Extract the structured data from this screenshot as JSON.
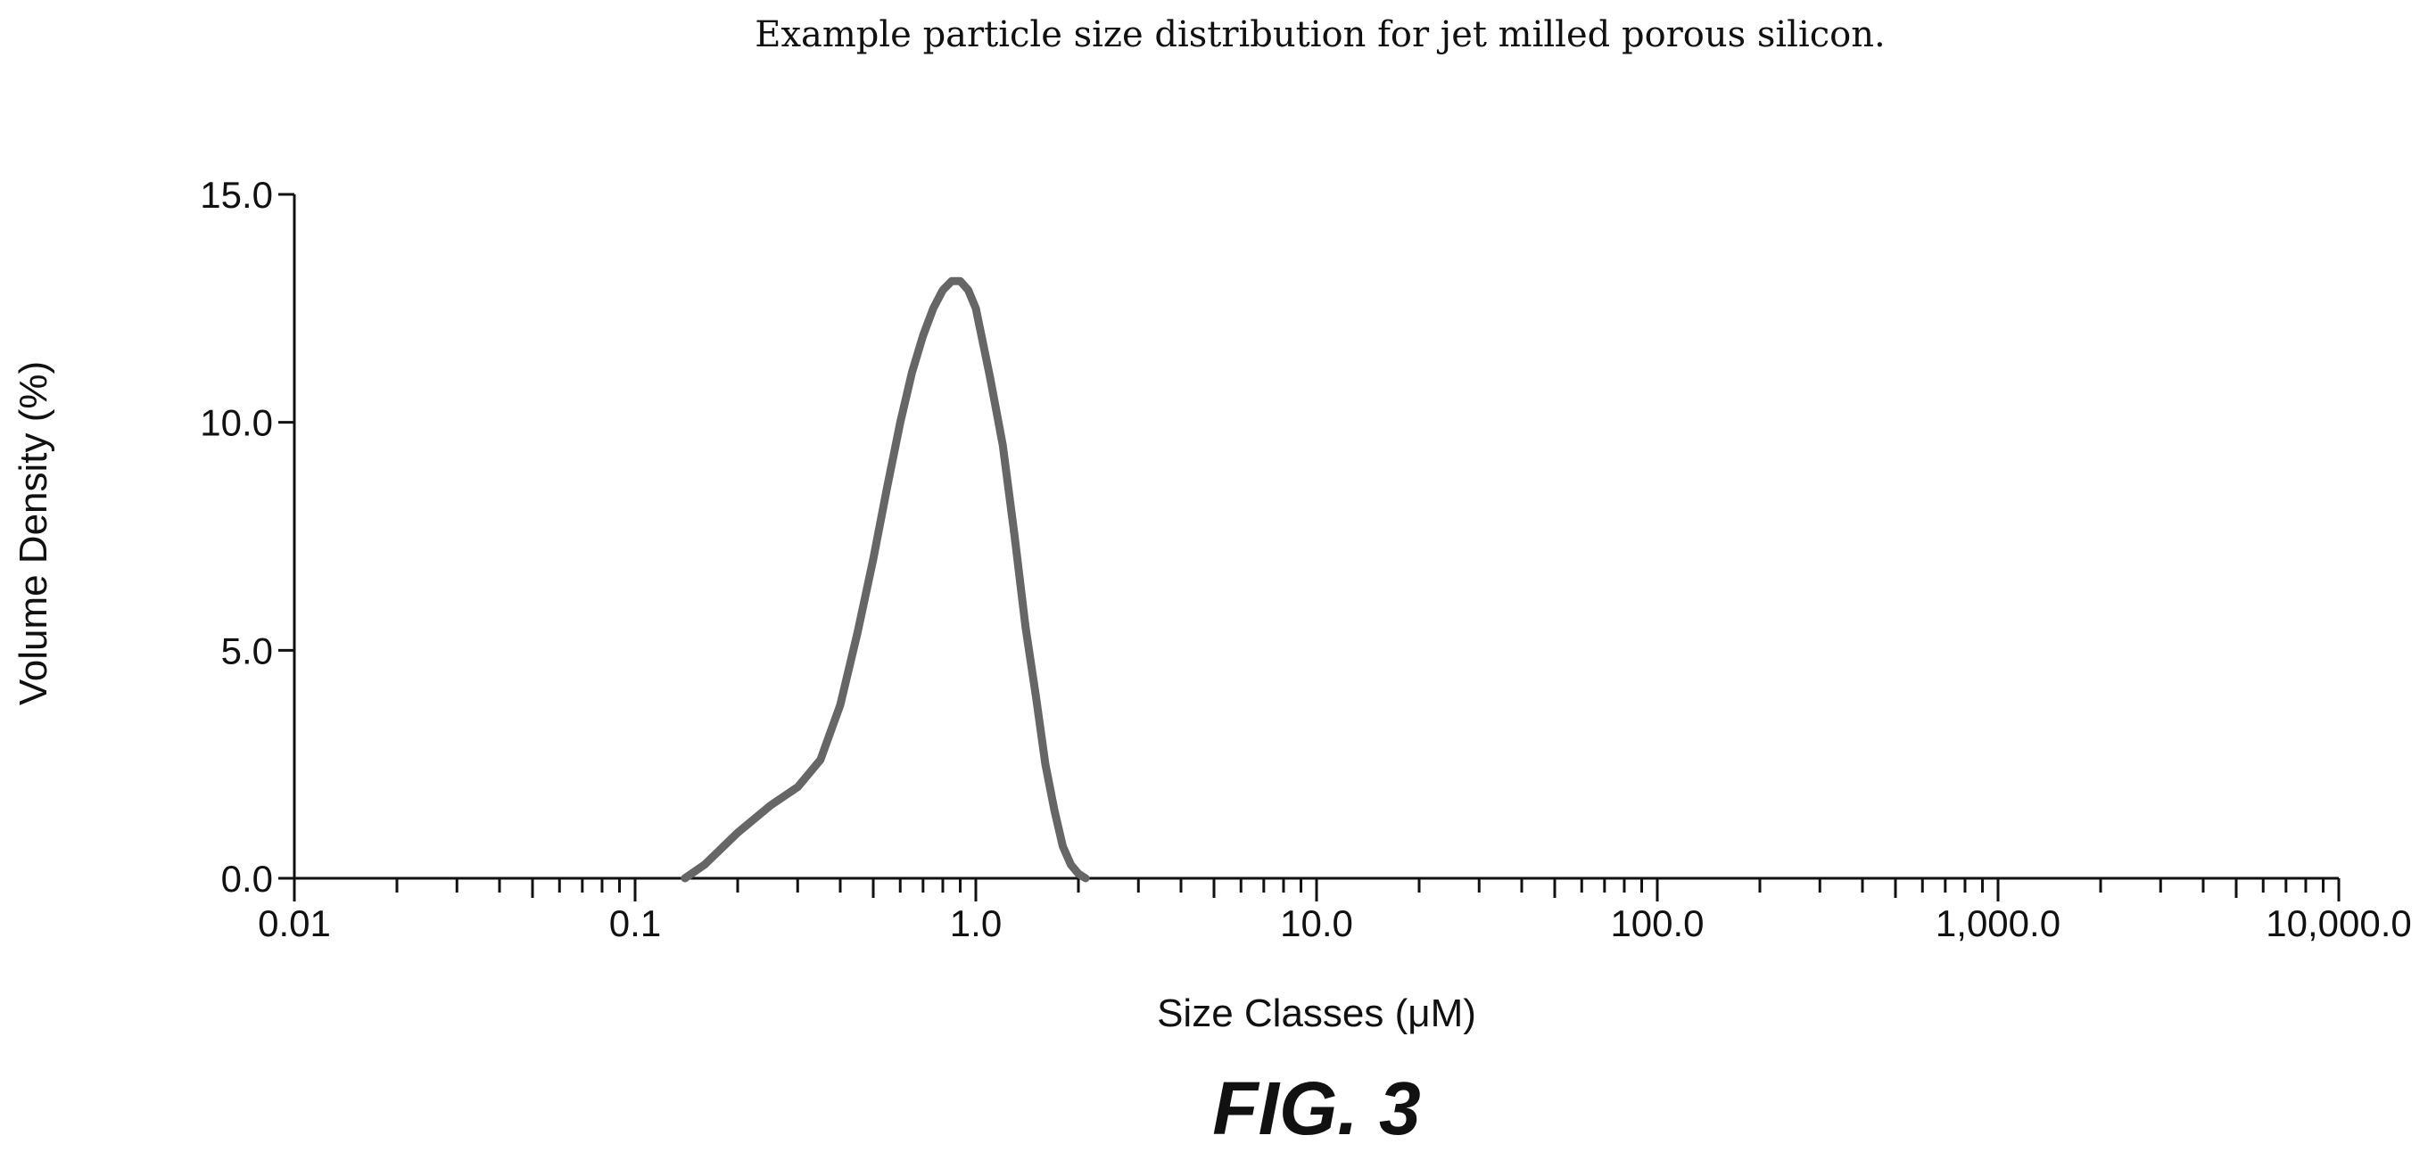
{
  "chart_data": {
    "type": "line",
    "title": "Example particle size distribution for jet milled porous silicon.",
    "xlabel": "Size Classes (μM)",
    "ylabel": "Volume Density (%)",
    "x_scale": "log",
    "xlim": [
      0.01,
      10000
    ],
    "ylim": [
      0,
      15
    ],
    "x_tick_labels": [
      "0.01",
      "0.1",
      "1.0",
      "10.0",
      "100.0",
      "1,000.0",
      "10,000.0"
    ],
    "x_tick_values": [
      0.01,
      0.1,
      1,
      10,
      100,
      1000,
      10000
    ],
    "y_tick_labels": [
      "0.0",
      "5.0",
      "10.0",
      "15.0"
    ],
    "y_tick_values": [
      0,
      5,
      10,
      15
    ],
    "grid": false,
    "legend": "none",
    "series": [
      {
        "color": "#666666",
        "x": [
          0.01,
          0.14,
          0.16,
          0.2,
          0.25,
          0.3,
          0.35,
          0.4,
          0.45,
          0.5,
          0.55,
          0.6,
          0.65,
          0.7,
          0.75,
          0.8,
          0.85,
          0.9,
          0.95,
          1.0,
          1.1,
          1.2,
          1.3,
          1.4,
          1.5,
          1.6,
          1.7,
          1.8,
          1.9,
          2.0,
          2.1,
          10000
        ],
        "y": [
          0,
          0,
          0.3,
          1.0,
          1.6,
          2.0,
          2.6,
          3.8,
          5.4,
          7.0,
          8.6,
          10.0,
          11.1,
          11.9,
          12.5,
          12.9,
          13.1,
          13.1,
          12.9,
          12.5,
          11.0,
          9.5,
          7.5,
          5.5,
          4.0,
          2.5,
          1.5,
          0.7,
          0.3,
          0.1,
          0,
          0
        ]
      }
    ]
  },
  "figure_label": "FIG. 3"
}
